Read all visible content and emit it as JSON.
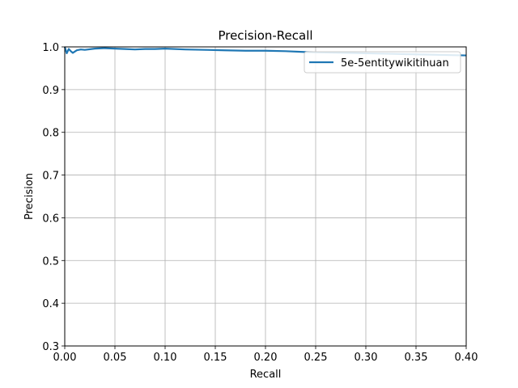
{
  "chart_data": {
    "type": "line",
    "title": "Precision-Recall",
    "xlabel": "Recall",
    "ylabel": "Precision",
    "xlim": [
      0.0,
      0.4
    ],
    "ylim": [
      0.3,
      1.0
    ],
    "x_ticks": [
      "0.00",
      "0.05",
      "0.10",
      "0.15",
      "0.20",
      "0.25",
      "0.30",
      "0.35",
      "0.40"
    ],
    "y_ticks": [
      "0.3",
      "0.4",
      "0.5",
      "0.6",
      "0.7",
      "0.8",
      "0.9",
      "1.0"
    ],
    "grid": true,
    "legend_position": "top-right",
    "series": [
      {
        "name": "5e-5entitywikitihuan",
        "color": "#1f77b4",
        "x": [
          0.0,
          0.002,
          0.004,
          0.006,
          0.008,
          0.012,
          0.016,
          0.02,
          0.03,
          0.04,
          0.05,
          0.06,
          0.07,
          0.08,
          0.09,
          0.1,
          0.12,
          0.14,
          0.16,
          0.18,
          0.2,
          0.22,
          0.24,
          0.26,
          0.28,
          0.3,
          0.32,
          0.34,
          0.36,
          0.38,
          0.4
        ],
        "y": [
          1.0,
          0.985,
          0.995,
          0.99,
          0.986,
          0.992,
          0.994,
          0.993,
          0.996,
          0.997,
          0.996,
          0.995,
          0.994,
          0.995,
          0.995,
          0.996,
          0.994,
          0.993,
          0.992,
          0.991,
          0.991,
          0.99,
          0.988,
          0.987,
          0.986,
          0.985,
          0.984,
          0.983,
          0.982,
          0.981,
          0.98
        ]
      }
    ]
  }
}
